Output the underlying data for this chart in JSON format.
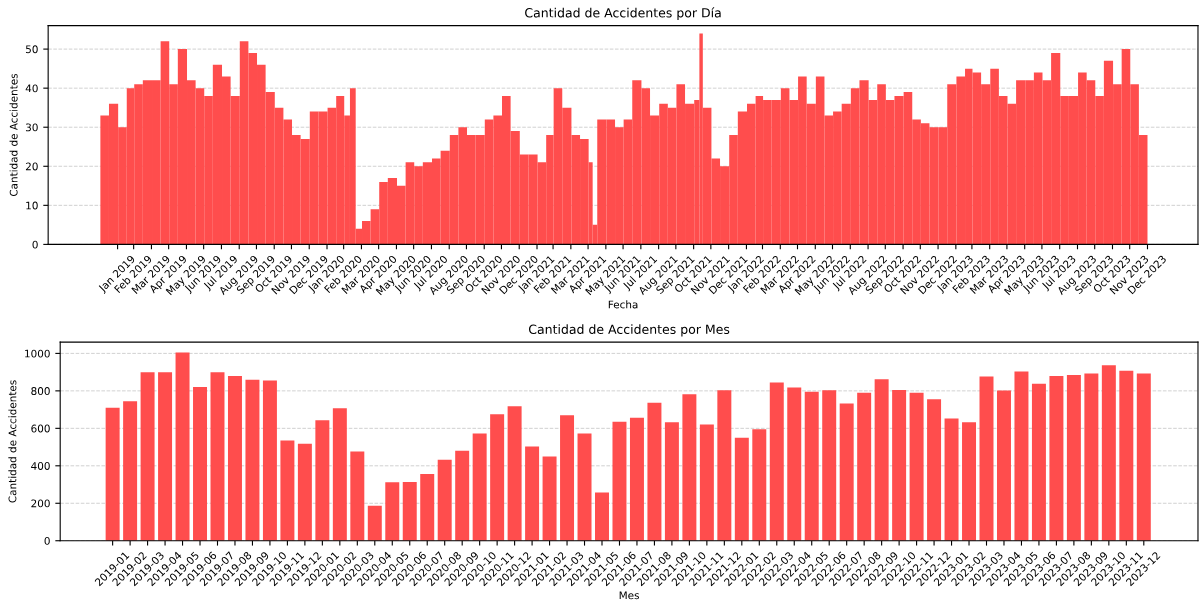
{
  "chart_data": [
    {
      "type": "bar",
      "title": "Cantidad de Accidentes por Día",
      "xlabel": "Fecha",
      "ylabel": "Cantidad de Accidentes",
      "color": "#ff4d4d",
      "x": [
        "2019-01-01",
        "2019-01-16",
        "2019-02-01",
        "2019-02-16",
        "2019-03-01",
        "2019-03-16",
        "2019-04-01",
        "2019-04-16",
        "2019-05-01",
        "2019-05-16",
        "2019-06-01",
        "2019-06-16",
        "2019-07-01",
        "2019-07-16",
        "2019-08-01",
        "2019-08-16",
        "2019-09-01",
        "2019-09-16",
        "2019-10-01",
        "2019-10-16",
        "2019-11-01",
        "2019-11-16",
        "2019-12-01",
        "2019-12-16",
        "2020-01-01",
        "2020-01-16",
        "2020-02-01",
        "2020-02-16",
        "2020-03-01",
        "2020-03-11",
        "2020-03-21",
        "2020-04-01",
        "2020-04-16",
        "2020-05-01",
        "2020-05-16",
        "2020-06-01",
        "2020-06-16",
        "2020-07-01",
        "2020-07-16",
        "2020-08-01",
        "2020-08-16",
        "2020-09-01",
        "2020-09-16",
        "2020-10-01",
        "2020-10-16",
        "2020-11-01",
        "2020-11-16",
        "2020-12-01",
        "2020-12-16",
        "2021-01-01",
        "2021-01-16",
        "2021-02-01",
        "2021-02-16",
        "2021-03-01",
        "2021-03-16",
        "2021-04-01",
        "2021-04-16",
        "2021-05-01",
        "2021-05-08",
        "2021-05-16",
        "2021-06-01",
        "2021-06-16",
        "2021-07-01",
        "2021-07-16",
        "2021-08-01",
        "2021-08-16",
        "2021-09-01",
        "2021-09-16",
        "2021-10-01",
        "2021-10-16",
        "2021-11-01",
        "2021-11-10",
        "2021-11-16",
        "2021-12-01",
        "2021-12-16",
        "2022-01-01",
        "2022-01-16",
        "2022-02-01",
        "2022-02-16",
        "2022-03-01",
        "2022-03-16",
        "2022-04-01",
        "2022-04-16",
        "2022-05-01",
        "2022-05-16",
        "2022-06-01",
        "2022-06-16",
        "2022-07-01",
        "2022-07-16",
        "2022-08-01",
        "2022-08-16",
        "2022-09-01",
        "2022-09-16",
        "2022-10-01",
        "2022-10-16",
        "2022-11-01",
        "2022-11-16",
        "2022-12-01",
        "2022-12-16",
        "2023-01-01",
        "2023-01-16",
        "2023-02-01",
        "2023-02-16",
        "2023-03-01",
        "2023-03-16",
        "2023-04-01",
        "2023-04-16",
        "2023-05-01",
        "2023-05-16",
        "2023-06-01",
        "2023-06-16",
        "2023-07-01",
        "2023-07-16",
        "2023-08-01",
        "2023-08-16",
        "2023-09-01",
        "2023-09-16",
        "2023-10-01",
        "2023-10-16",
        "2023-11-01",
        "2023-11-16",
        "2023-12-01",
        "2023-12-16"
      ],
      "values": [
        33,
        36,
        30,
        40,
        41,
        42,
        42,
        52,
        41,
        50,
        42,
        40,
        38,
        46,
        43,
        38,
        52,
        49,
        46,
        39,
        35,
        32,
        28,
        27,
        34,
        34,
        35,
        38,
        33,
        40,
        4,
        6,
        9,
        16,
        17,
        15,
        21,
        20,
        21,
        22,
        24,
        28,
        30,
        28,
        28,
        32,
        33,
        38,
        29,
        23,
        23,
        21,
        28,
        40,
        35,
        28,
        27,
        21,
        5,
        32,
        32,
        30,
        32,
        42,
        40,
        33,
        36,
        35,
        41,
        36,
        37,
        54,
        35,
        22,
        20,
        28,
        34,
        36,
        38,
        37,
        37,
        40,
        37,
        43,
        36,
        43,
        33,
        34,
        36,
        40,
        42,
        37,
        41,
        37,
        38,
        39,
        32,
        31,
        30,
        30,
        41,
        43,
        45,
        44,
        41,
        45,
        38,
        36,
        42,
        42,
        44,
        42,
        49,
        38,
        38,
        44,
        42,
        38,
        47,
        41,
        50,
        41,
        28
      ],
      "xlim": [
        "2018-10-02",
        "2024-03-28"
      ],
      "ylim": [
        0,
        56
      ],
      "yticks": [
        0,
        10,
        20,
        30,
        40,
        50
      ],
      "xticks": [
        {
          "value": "2019-01-31",
          "label": "Jan 2019"
        },
        {
          "value": "2019-02-28",
          "label": "Feb 2019"
        },
        {
          "value": "2019-03-31",
          "label": "Mar 2019"
        },
        {
          "value": "2019-04-30",
          "label": "Apr 2019"
        },
        {
          "value": "2019-05-31",
          "label": "May 2019"
        },
        {
          "value": "2019-06-30",
          "label": "Jun 2019"
        },
        {
          "value": "2019-07-31",
          "label": "Jul 2019"
        },
        {
          "value": "2019-08-31",
          "label": "Aug 2019"
        },
        {
          "value": "2019-09-30",
          "label": "Sep 2019"
        },
        {
          "value": "2019-10-31",
          "label": "Oct 2019"
        },
        {
          "value": "2019-11-30",
          "label": "Nov 2019"
        },
        {
          "value": "2019-12-31",
          "label": "Dec 2019"
        },
        {
          "value": "2020-01-31",
          "label": "Jan 2020"
        },
        {
          "value": "2020-02-29",
          "label": "Feb 2020"
        },
        {
          "value": "2020-03-31",
          "label": "Mar 2020"
        },
        {
          "value": "2020-04-30",
          "label": "Apr 2020"
        },
        {
          "value": "2020-05-31",
          "label": "May 2020"
        },
        {
          "value": "2020-06-30",
          "label": "Jun 2020"
        },
        {
          "value": "2020-07-31",
          "label": "Jul 2020"
        },
        {
          "value": "2020-08-31",
          "label": "Aug 2020"
        },
        {
          "value": "2020-09-30",
          "label": "Sep 2020"
        },
        {
          "value": "2020-10-31",
          "label": "Oct 2020"
        },
        {
          "value": "2020-11-30",
          "label": "Nov 2020"
        },
        {
          "value": "2020-12-31",
          "label": "Dec 2020"
        },
        {
          "value": "2021-01-31",
          "label": "Jan 2021"
        },
        {
          "value": "2021-02-28",
          "label": "Feb 2021"
        },
        {
          "value": "2021-03-31",
          "label": "Mar 2021"
        },
        {
          "value": "2021-04-30",
          "label": "Apr 2021"
        },
        {
          "value": "2021-05-31",
          "label": "May 2021"
        },
        {
          "value": "2021-06-30",
          "label": "Jun 2021"
        },
        {
          "value": "2021-07-31",
          "label": "Jul 2021"
        },
        {
          "value": "2021-08-31",
          "label": "Aug 2021"
        },
        {
          "value": "2021-09-30",
          "label": "Sep 2021"
        },
        {
          "value": "2021-10-31",
          "label": "Oct 2021"
        },
        {
          "value": "2021-11-30",
          "label": "Nov 2021"
        },
        {
          "value": "2021-12-31",
          "label": "Dec 2021"
        },
        {
          "value": "2022-01-31",
          "label": "Jan 2022"
        },
        {
          "value": "2022-02-28",
          "label": "Feb 2022"
        },
        {
          "value": "2022-03-31",
          "label": "Mar 2022"
        },
        {
          "value": "2022-04-30",
          "label": "Apr 2022"
        },
        {
          "value": "2022-05-31",
          "label": "May 2022"
        },
        {
          "value": "2022-06-30",
          "label": "Jun 2022"
        },
        {
          "value": "2022-07-31",
          "label": "Jul 2022"
        },
        {
          "value": "2022-08-31",
          "label": "Aug 2022"
        },
        {
          "value": "2022-09-30",
          "label": "Sep 2022"
        },
        {
          "value": "2022-10-31",
          "label": "Oct 2022"
        },
        {
          "value": "2022-11-30",
          "label": "Nov 2022"
        },
        {
          "value": "2022-12-31",
          "label": "Dec 2022"
        },
        {
          "value": "2023-01-31",
          "label": "Jan 2023"
        },
        {
          "value": "2023-02-28",
          "label": "Feb 2023"
        },
        {
          "value": "2023-03-31",
          "label": "Mar 2023"
        },
        {
          "value": "2023-04-30",
          "label": "Apr 2023"
        },
        {
          "value": "2023-05-31",
          "label": "May 2023"
        },
        {
          "value": "2023-06-30",
          "label": "Jun 2023"
        },
        {
          "value": "2023-07-31",
          "label": "Jul 2023"
        },
        {
          "value": "2023-08-31",
          "label": "Aug 2023"
        },
        {
          "value": "2023-09-30",
          "label": "Sep 2023"
        },
        {
          "value": "2023-10-31",
          "label": "Oct 2023"
        },
        {
          "value": "2023-11-30",
          "label": "Nov 2023"
        },
        {
          "value": "2023-12-31",
          "label": "Dec 2023"
        }
      ],
      "grid": "y",
      "line_style": "dashed"
    },
    {
      "type": "bar",
      "title": "Cantidad de Accidentes por Mes",
      "xlabel": "Mes",
      "ylabel": "Cantidad de Accidentes",
      "color": "#ff4d4d",
      "categories": [
        "2019-01",
        "2019-02",
        "2019-03",
        "2019-04",
        "2019-05",
        "2019-06",
        "2019-07",
        "2019-08",
        "2019-09",
        "2019-10",
        "2019-11",
        "2019-12",
        "2020-01",
        "2020-02",
        "2020-03",
        "2020-04",
        "2020-05",
        "2020-06",
        "2020-07",
        "2020-08",
        "2020-09",
        "2020-10",
        "2020-11",
        "2020-12",
        "2021-01",
        "2021-02",
        "2021-03",
        "2021-04",
        "2021-05",
        "2021-06",
        "2021-07",
        "2021-08",
        "2021-09",
        "2021-10",
        "2021-11",
        "2021-12",
        "2022-01",
        "2022-02",
        "2022-03",
        "2022-04",
        "2022-05",
        "2022-06",
        "2022-07",
        "2022-08",
        "2022-09",
        "2022-10",
        "2022-11",
        "2022-12",
        "2023-01",
        "2023-02",
        "2023-03",
        "2023-04",
        "2023-05",
        "2023-06",
        "2023-07",
        "2023-08",
        "2023-09",
        "2023-10",
        "2023-11",
        "2023-12"
      ],
      "values": [
        710,
        745,
        900,
        900,
        1005,
        820,
        900,
        880,
        860,
        855,
        535,
        518,
        643,
        707,
        477,
        187,
        312,
        313,
        356,
        432,
        480,
        573,
        675,
        718,
        503,
        450,
        670,
        573,
        257,
        635,
        657,
        737,
        632,
        782,
        620,
        803,
        550,
        595,
        845,
        818,
        795,
        803,
        733,
        790,
        862,
        805,
        790,
        755,
        652,
        632,
        877,
        802,
        903,
        838,
        880,
        885,
        893,
        937,
        907,
        893
      ],
      "ylim": [
        0,
        1060
      ],
      "yticks": [
        0,
        200,
        400,
        600,
        800,
        1000
      ],
      "grid": "y",
      "line_style": "dashed"
    }
  ]
}
